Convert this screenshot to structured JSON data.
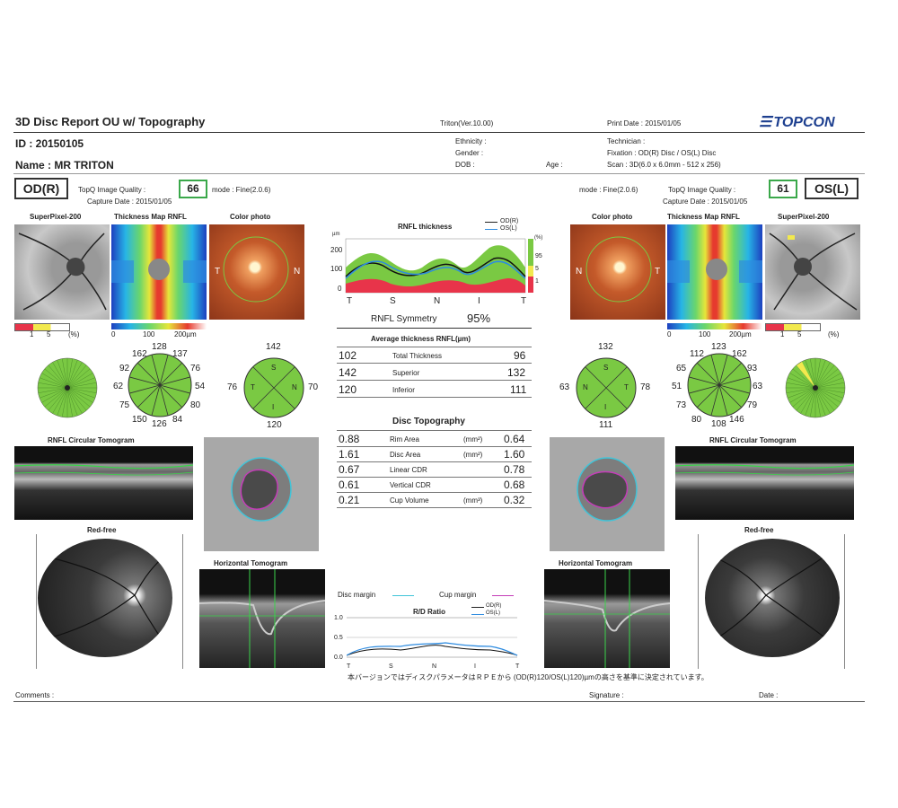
{
  "header": {
    "title": "3D Disc Report OU w/ Topography",
    "version": "Triton(Ver.10.00)",
    "print_date": "Print Date : 2015/01/05",
    "brand": "TOPCON",
    "id": "ID : 20150105",
    "name": "Name : MR   TRITON",
    "ethnicity": "Ethnicity :",
    "gender": "Gender :",
    "dob": "DOB :",
    "age": "Age :",
    "technician": "Technician :",
    "fixation": "Fixation : OD(R) Disc / OS(L) Disc",
    "scan": "Scan : 3D(6.0 x 6.0mm - 512 x 256)"
  },
  "od": {
    "eye_label": "OD(R)",
    "quality_label": "TopQ Image Quality :",
    "quality": "66",
    "mode": "mode : Fine(2.0.6)",
    "capture": "Capture Date : 2015/01/05",
    "cap_superpixel": "SuperPixel-200",
    "cap_thickness": "Thickness Map RNFL",
    "cap_color": "Color photo",
    "scale_sp": [
      "1",
      "5",
      "(%)"
    ],
    "scale_thick": [
      "0",
      "100",
      "200µm"
    ],
    "clock": [
      "162",
      "128",
      "137",
      "92",
      "76",
      "62",
      "54",
      "75",
      "80",
      "150",
      "126",
      "84"
    ],
    "quadrants": {
      "top": "142",
      "left": "76",
      "right": "70",
      "bottom": "120"
    },
    "letters": {
      "S": "S",
      "T": "T",
      "N": "N",
      "I": "I"
    },
    "photo_T": "T",
    "photo_N": "N",
    "circ_tomogram": "RNFL Circular Tomogram",
    "redfree": "Red-free",
    "horiz_tomogram": "Horizontal Tomogram"
  },
  "os": {
    "eye_label": "OS(L)",
    "quality_label": "TopQ Image Quality :",
    "quality": "61",
    "mode": "mode : Fine(2.0.6)",
    "capture": "Capture Date : 2015/01/05",
    "cap_superpixel": "SuperPixel-200",
    "cap_thickness": "Thickness Map RNFL",
    "cap_color": "Color photo",
    "scale_sp": [
      "1",
      "5",
      "(%)"
    ],
    "scale_thick": [
      "0",
      "100",
      "200µm"
    ],
    "clock": [
      "112",
      "123",
      "162",
      "65",
      "93",
      "51",
      "63",
      "73",
      "79",
      "80",
      "108",
      "146"
    ],
    "quadrants": {
      "top": "132",
      "left": "63",
      "right": "78",
      "bottom": "111"
    },
    "letters": {
      "S": "S",
      "T": "T",
      "N": "N",
      "I": "I"
    },
    "photo_T": "T",
    "photo_N": "N",
    "circ_tomogram": "RNFL Circular Tomogram",
    "redfree": "Red-free",
    "horiz_tomogram": "Horizontal Tomogram"
  },
  "center": {
    "rnfl_title": "RNFL thickness",
    "legend_od": "OD(R)",
    "legend_os": "OS(L)",
    "yunit": "µm",
    "yticks": [
      "200",
      "100",
      "0"
    ],
    "xlabels": [
      "T",
      "S",
      "N",
      "I",
      "T"
    ],
    "bar_labels": [
      "(%)",
      "95",
      "5",
      "1"
    ],
    "symmetry_label": "RNFL Symmetry",
    "symmetry": "95%",
    "avg_title": "Average thickness RNFL(µm)",
    "avg_rows": [
      {
        "od": "102",
        "label": "Total Thickness",
        "os": "96"
      },
      {
        "od": "142",
        "label": "Superior",
        "os": "132"
      },
      {
        "od": "120",
        "label": "Inferior",
        "os": "111"
      }
    ],
    "disc_title": "Disc Topography",
    "disc_rows": [
      {
        "od": "0.88",
        "label": "Rim Area",
        "unit": "(mm²)",
        "os": "0.64"
      },
      {
        "od": "1.61",
        "label": "Disc Area",
        "unit": "(mm²)",
        "os": "1.60"
      },
      {
        "od": "0.67",
        "label": "Linear CDR",
        "unit": "",
        "os": "0.78"
      },
      {
        "od": "0.61",
        "label": "Vertical CDR",
        "unit": "",
        "os": "0.68"
      },
      {
        "od": "0.21",
        "label": "Cup Volume",
        "unit": "(mm³)",
        "os": "0.32"
      }
    ],
    "disc_margin": "Disc margin",
    "cup_margin": "Cup margin",
    "rd_title": "R/D Ratio",
    "rd_legend_od": "OD(R)",
    "rd_legend_os": "OS(L)",
    "rd_yticks": [
      "1.0",
      "0.5",
      "0.0"
    ],
    "rd_xlabels": [
      "T",
      "S",
      "N",
      "I",
      "T"
    ],
    "footnote": "本バージョンではディスクパラメータはＲＰＥから (OD(R)120/OS(L)120)µmの高さを基準に決定されています。"
  },
  "footer": {
    "comments": "Comments :",
    "signature": "Signature :",
    "date": "Date :"
  },
  "colors": {
    "quality_border": "#3aa84a",
    "sector_green": "#7ac943",
    "rnfl_red": "#e8344a",
    "rnfl_yellow": "#f2e94e",
    "rnfl_green": "#7ac943",
    "disc_margin": "#41c4d8",
    "cup_margin": "#c43db8"
  }
}
